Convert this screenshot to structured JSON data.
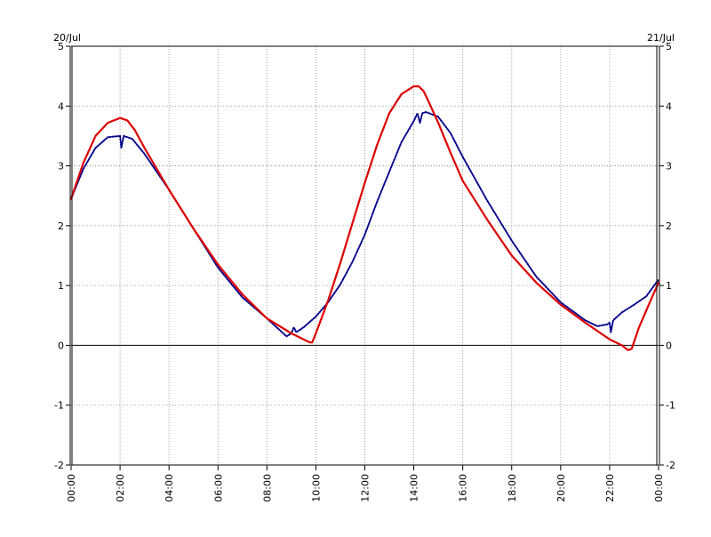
{
  "chart_data": {
    "type": "line",
    "title": "",
    "xlabel": "",
    "ylabel": "",
    "x_unit": "hours",
    "xlim": [
      0,
      24
    ],
    "ylim": [
      -2,
      5
    ],
    "grid": true,
    "date_labels": {
      "left": "20/Jul",
      "right": "21/Jul"
    },
    "x_ticks": [
      {
        "hour": 0,
        "label": "00:00"
      },
      {
        "hour": 2,
        "label": "02:00"
      },
      {
        "hour": 4,
        "label": "04:00"
      },
      {
        "hour": 6,
        "label": "06:00"
      },
      {
        "hour": 8,
        "label": "08:00"
      },
      {
        "hour": 10,
        "label": "10:00"
      },
      {
        "hour": 12,
        "label": "12:00"
      },
      {
        "hour": 14,
        "label": "14:00"
      },
      {
        "hour": 16,
        "label": "16:00"
      },
      {
        "hour": 18,
        "label": "18:00"
      },
      {
        "hour": 20,
        "label": "20:00"
      },
      {
        "hour": 22,
        "label": "22:00"
      },
      {
        "hour": 24,
        "label": "00:00"
      }
    ],
    "y_ticks": [
      {
        "value": 5,
        "label": "5"
      },
      {
        "value": 4,
        "label": "4"
      },
      {
        "value": 3,
        "label": "3"
      },
      {
        "value": 2,
        "label": "2"
      },
      {
        "value": 1,
        "label": "1"
      },
      {
        "value": 0,
        "label": "0"
      },
      {
        "value": -1,
        "label": "-1"
      },
      {
        "value": -2,
        "label": "-2"
      }
    ],
    "series": [
      {
        "color": "#00008b",
        "style": "dotted",
        "x": [
          0,
          0.5,
          1,
          1.5,
          2,
          2.05,
          2.15,
          2.5,
          3,
          4,
          5,
          6,
          7,
          8,
          8.8,
          9,
          9.1,
          9.2,
          9.5,
          10,
          10.5,
          11,
          11.5,
          12,
          12.5,
          13,
          13.5,
          14,
          14.15,
          14.25,
          14.35,
          14.5,
          15,
          15.5,
          16,
          17,
          18,
          19,
          20,
          21,
          21.5,
          21.9,
          22,
          22.05,
          22.15,
          22.5,
          23,
          23.5,
          24
        ],
        "y": [
          2.45,
          2.95,
          3.3,
          3.48,
          3.5,
          3.3,
          3.5,
          3.45,
          3.2,
          2.6,
          1.95,
          1.3,
          0.8,
          0.45,
          0.15,
          0.2,
          0.3,
          0.22,
          0.3,
          0.48,
          0.72,
          1.02,
          1.4,
          1.85,
          2.4,
          2.9,
          3.4,
          3.75,
          3.88,
          3.72,
          3.88,
          3.9,
          3.82,
          3.55,
          3.15,
          2.42,
          1.75,
          1.15,
          0.72,
          0.42,
          0.32,
          0.35,
          0.38,
          0.22,
          0.42,
          0.55,
          0.68,
          0.82,
          1.1
        ]
      },
      {
        "color": "#dd0000",
        "style": "solid",
        "x": [
          0,
          0.5,
          1,
          1.5,
          2,
          2.3,
          2.6,
          3,
          4,
          5,
          6,
          7,
          8,
          9,
          9.5,
          9.75,
          9.85,
          10,
          10.5,
          11,
          11.5,
          12,
          12.5,
          13,
          13.5,
          14,
          14.2,
          14.4,
          14.6,
          15,
          15.5,
          16,
          17,
          18,
          19,
          20,
          21,
          22,
          22.5,
          22.75,
          22.9,
          23.2,
          23.6,
          24
        ],
        "y": [
          2.45,
          3.05,
          3.5,
          3.72,
          3.8,
          3.76,
          3.6,
          3.3,
          2.6,
          1.95,
          1.35,
          0.85,
          0.45,
          0.2,
          0.1,
          0.05,
          0.05,
          0.2,
          0.75,
          1.38,
          2.05,
          2.72,
          3.35,
          3.88,
          4.2,
          4.33,
          4.33,
          4.25,
          4.08,
          3.72,
          3.22,
          2.75,
          2.1,
          1.5,
          1.05,
          0.68,
          0.38,
          0.1,
          0.0,
          -0.08,
          -0.06,
          0.3,
          0.68,
          1.05
        ]
      }
    ]
  }
}
